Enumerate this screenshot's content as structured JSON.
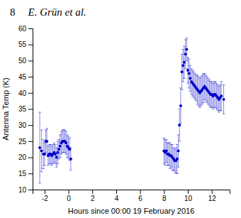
{
  "chart_data": {
    "type": "scatter",
    "annotations": [
      "8",
      "E. Grün et al."
    ],
    "xlabel": "Hours since 00:00 19 February 2016",
    "ylabel": "Antenna Temp (K)",
    "xlim": [
      -3,
      13.5
    ],
    "ylim": [
      10,
      60
    ],
    "xticks": [
      -2,
      0,
      2,
      4,
      6,
      8,
      10,
      12
    ],
    "yticks": [
      10,
      15,
      20,
      25,
      30,
      35,
      40,
      45,
      50,
      55,
      60
    ],
    "color": "#0000cc",
    "grid": false,
    "marker": "circle",
    "x": [
      -2.4,
      -2.25,
      -2.1,
      -2.0,
      -1.9,
      -1.8,
      -1.7,
      -1.6,
      -1.5,
      -1.4,
      -1.3,
      -1.2,
      -1.1,
      -1.0,
      -0.9,
      -0.8,
      -0.7,
      -0.6,
      -0.5,
      -0.4,
      -0.3,
      -0.2,
      -0.1,
      0.0,
      0.1,
      0.2,
      8.0,
      8.1,
      8.2,
      8.3,
      8.4,
      8.5,
      8.6,
      8.7,
      8.8,
      8.9,
      9.0,
      9.1,
      9.2,
      9.3,
      9.4,
      9.5,
      9.6,
      9.7,
      9.8,
      9.9,
      10.0,
      10.1,
      10.2,
      10.3,
      10.4,
      10.5,
      10.6,
      10.7,
      10.8,
      10.9,
      11.0,
      11.1,
      11.2,
      11.3,
      11.4,
      11.5,
      11.6,
      11.7,
      11.8,
      11.9,
      12.0,
      12.1,
      12.2,
      12.3,
      12.4,
      12.5,
      12.6,
      12.7,
      12.8,
      13.0
    ],
    "values": [
      23.0,
      22.0,
      21.0,
      21.0,
      25.0,
      25.0,
      20.5,
      21.0,
      21.0,
      20.5,
      21.0,
      21.5,
      21.0,
      20.0,
      21.5,
      22.5,
      23.5,
      24.5,
      25.0,
      25.0,
      25.0,
      24.5,
      23.5,
      23.0,
      22.5,
      19.5,
      22.0,
      21.5,
      22.0,
      21.0,
      21.0,
      20.5,
      20.5,
      20.0,
      19.5,
      19.0,
      19.0,
      19.5,
      22.0,
      30.0,
      36.0,
      46.5,
      48.5,
      49.5,
      52.0,
      53.5,
      47.0,
      46.0,
      44.5,
      43.5,
      43.0,
      42.5,
      42.0,
      41.5,
      41.0,
      40.5,
      40.0,
      40.5,
      41.0,
      41.5,
      42.0,
      41.5,
      41.0,
      40.5,
      40.0,
      39.5,
      39.5,
      39.0,
      39.5,
      39.5,
      39.0,
      38.5,
      38.0,
      38.5,
      39.0,
      38.0
    ],
    "yerr": [
      11.0,
      6.5,
      4.5,
      3.5,
      3.5,
      4.0,
      3.0,
      3.0,
      3.0,
      3.0,
      3.0,
      3.0,
      3.0,
      3.0,
      3.5,
      3.0,
      3.5,
      3.5,
      3.5,
      3.5,
      3.5,
      3.5,
      3.5,
      3.5,
      3.5,
      3.5,
      4.0,
      4.0,
      3.5,
      3.5,
      3.5,
      4.0,
      3.5,
      4.0,
      3.5,
      3.5,
      4.0,
      4.5,
      5.0,
      5.0,
      5.5,
      5.5,
      5.0,
      5.0,
      4.5,
      3.5,
      4.0,
      4.5,
      4.0,
      4.0,
      4.0,
      4.0,
      4.0,
      4.0,
      4.5,
      4.5,
      4.5,
      4.5,
      4.5,
      4.5,
      4.0,
      4.0,
      4.0,
      4.0,
      4.0,
      4.0,
      4.0,
      4.0,
      4.0,
      4.0,
      4.0,
      4.0,
      4.0,
      4.0,
      4.5,
      4.5
    ]
  }
}
